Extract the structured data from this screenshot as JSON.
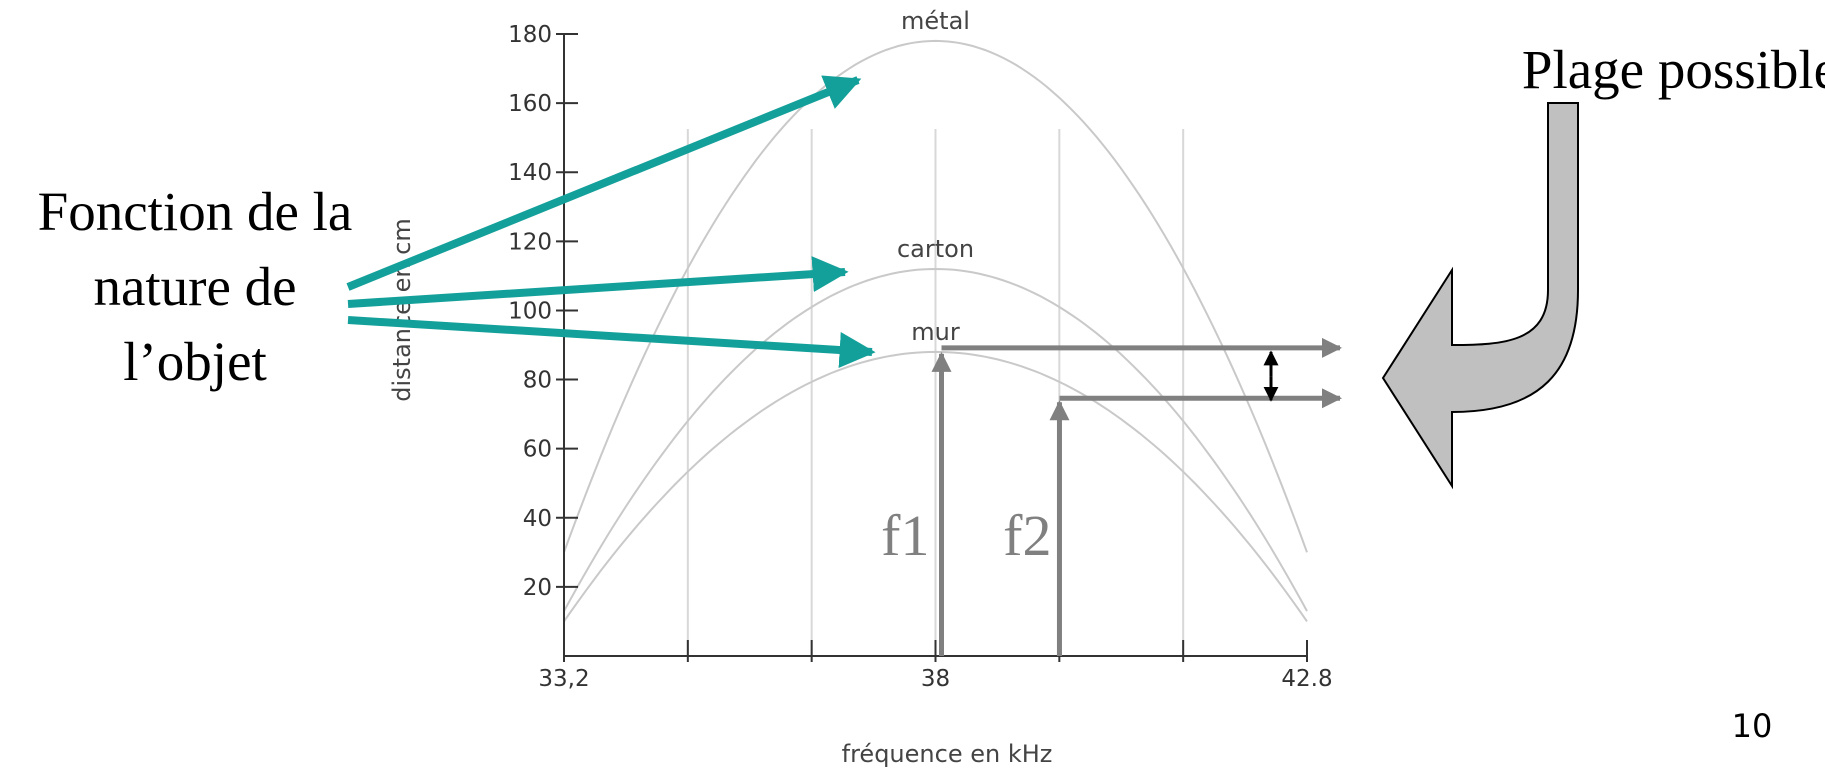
{
  "slide": {
    "left_label_lines": [
      "Fonction de la",
      "nature de",
      "l’objet"
    ],
    "right_label": "Plage possible",
    "page_number": "10",
    "arrow_color": "#14a09a",
    "annotation_color": "#808080",
    "callout_fill": "#c0c0c0"
  },
  "chart_data": {
    "type": "line",
    "xlabel": "fréquence en kHz",
    "ylabel": "distance en cm",
    "xlim": [
      33.2,
      42.8
    ],
    "ylim": [
      0,
      180
    ],
    "x_ticks": [
      33.2,
      34.8,
      36.4,
      38,
      39.6,
      41.2,
      42.8
    ],
    "x_tick_labels": [
      "33,2",
      "",
      "",
      "38",
      "",
      "",
      "42.8"
    ],
    "y_ticks": [
      20,
      40,
      60,
      80,
      100,
      120,
      140,
      160,
      180
    ],
    "y_tick_labels": [
      "20",
      "40",
      "60",
      "80",
      "100",
      "120",
      "140",
      "160",
      "180"
    ],
    "vertical_gridlines_x": [
      34.8,
      36.4,
      38,
      39.6,
      41.2
    ],
    "series": [
      {
        "name": "métal",
        "peak_x": 38,
        "peak_y": 178,
        "end_y": 30
      },
      {
        "name": "carton",
        "peak_x": 38,
        "peak_y": 112,
        "end_y": 13
      },
      {
        "name": "mur",
        "peak_x": 38,
        "peak_y": 88,
        "end_y": 10
      }
    ],
    "annotations": {
      "f1": {
        "label": "f1",
        "x": 38,
        "y": 88
      },
      "f2": {
        "label": "f2",
        "x": 39.55,
        "y": 74
      }
    }
  }
}
